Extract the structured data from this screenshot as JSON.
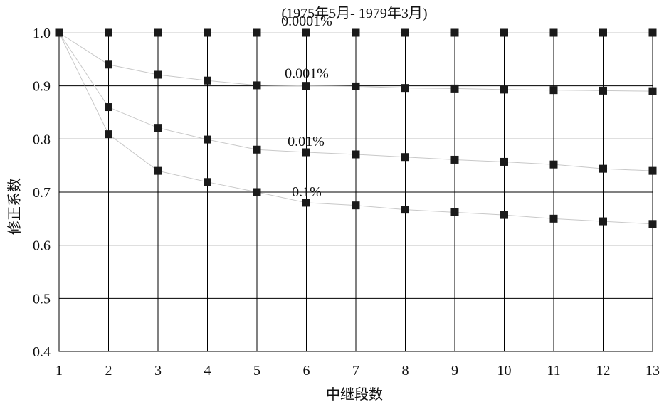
{
  "chart_data": {
    "type": "line",
    "title": "(1975年5月- 1979年3月)",
    "xlabel": "中继段数",
    "ylabel": "修正系数",
    "x": [
      1,
      2,
      3,
      4,
      5,
      6,
      7,
      8,
      9,
      10,
      11,
      12,
      13
    ],
    "xlim": [
      1,
      13
    ],
    "ylim": [
      0.4,
      1.0
    ],
    "yticks": [
      "0.4",
      "0.5",
      "0.6",
      "0.7",
      "0.8",
      "0.9",
      "1.0"
    ],
    "xticks": [
      "1",
      "2",
      "3",
      "4",
      "5",
      "6",
      "7",
      "8",
      "9",
      "10",
      "11",
      "12",
      "13"
    ],
    "grid": true,
    "legend": "none",
    "marker": "square",
    "series": [
      {
        "name": "0.0001%",
        "values": [
          1.0,
          1.0,
          1.0,
          1.0,
          1.0,
          1.0,
          1.0,
          1.0,
          1.0,
          1.0,
          1.0,
          1.0,
          1.0
        ]
      },
      {
        "name": "0.001%",
        "values": [
          1.0,
          0.94,
          0.921,
          0.91,
          0.901,
          0.9,
          0.899,
          0.896,
          0.895,
          0.893,
          0.892,
          0.891,
          0.89
        ]
      },
      {
        "name": "0.01%",
        "values": [
          1.0,
          0.86,
          0.821,
          0.799,
          0.78,
          0.775,
          0.771,
          0.766,
          0.761,
          0.757,
          0.752,
          0.744,
          0.74
        ]
      },
      {
        "name": "0.1%",
        "values": [
          1.0,
          0.809,
          0.74,
          0.719,
          0.7,
          0.68,
          0.675,
          0.667,
          0.662,
          0.657,
          0.65,
          0.645,
          0.64
        ]
      }
    ],
    "colors": {
      "line": "#c8c8c8",
      "marker": "#1a1a1a",
      "grid": "#000000",
      "text": "#111111"
    }
  }
}
